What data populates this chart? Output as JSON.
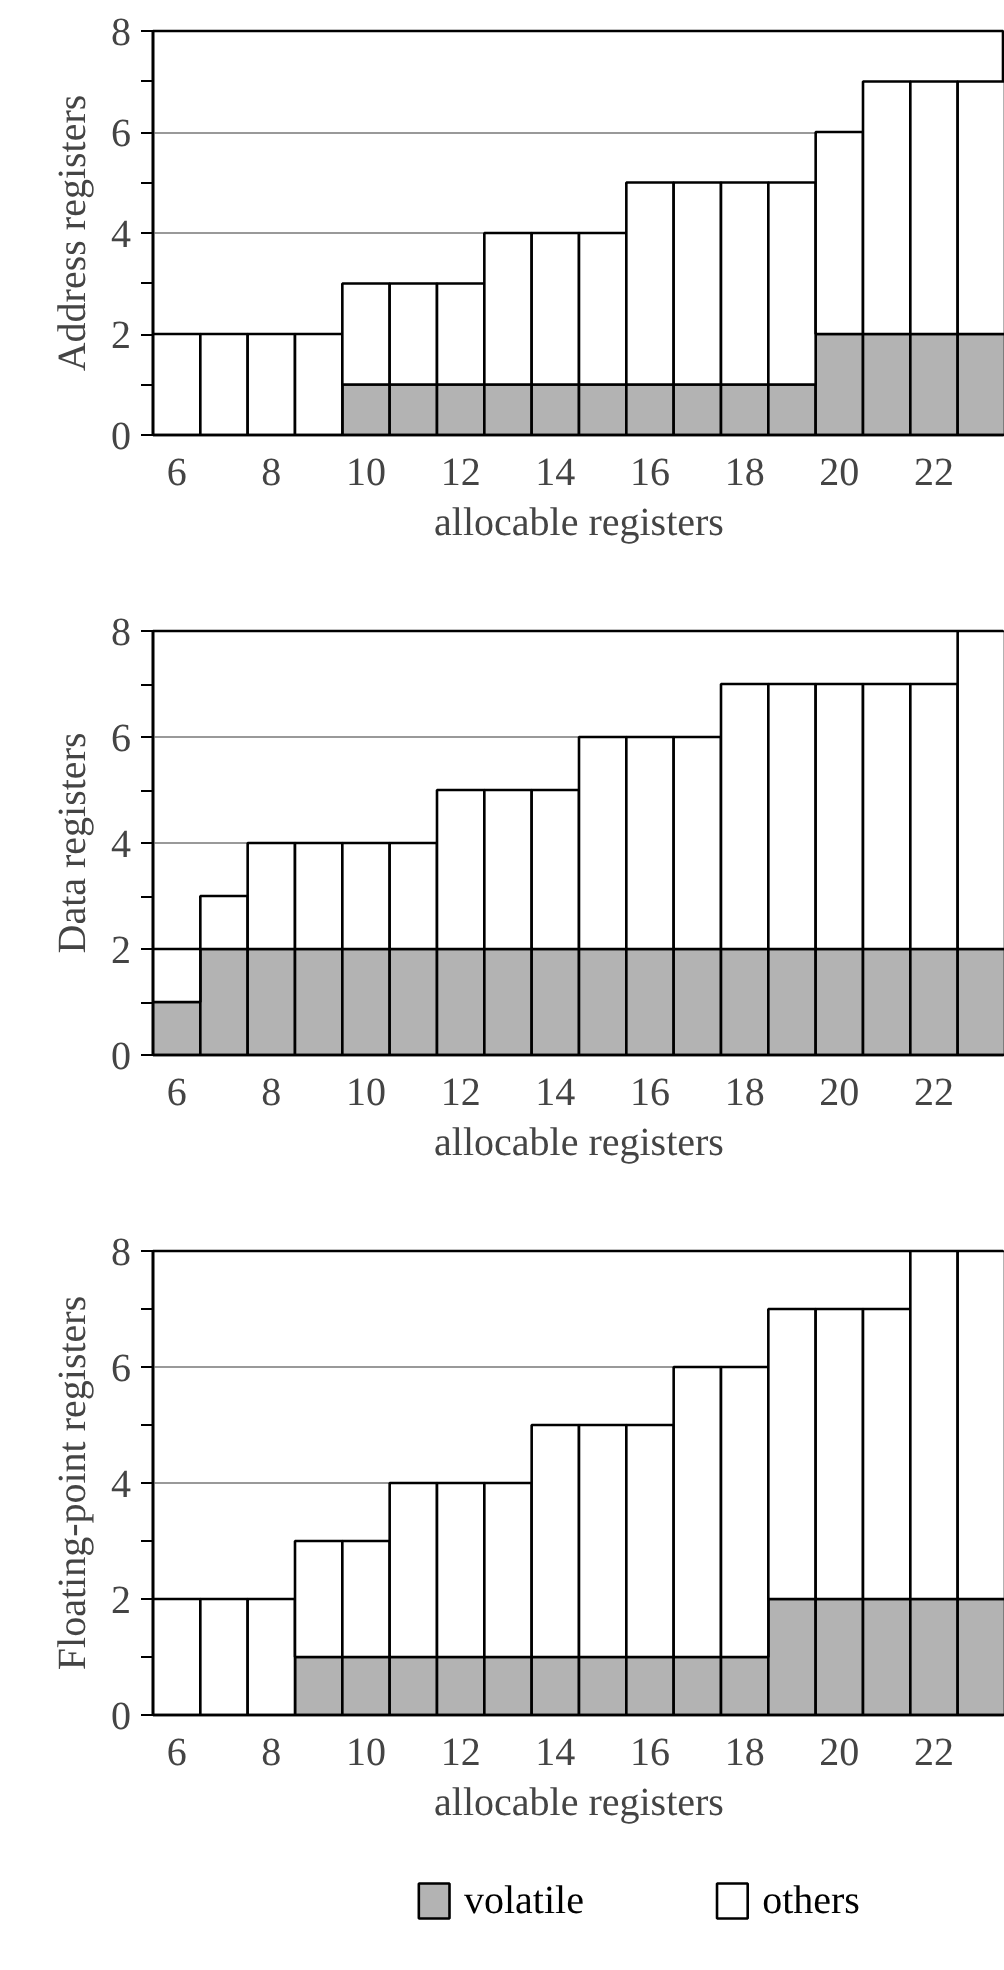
{
  "chart_data": [
    {
      "type": "bar",
      "stacked": true,
      "ylabel": "Address registers",
      "xlabel": "allocable registers",
      "x": [
        6,
        7,
        8,
        9,
        10,
        11,
        12,
        13,
        14,
        15,
        16,
        17,
        18,
        19,
        20,
        21,
        22,
        23
      ],
      "series": [
        {
          "color": "#b3b3b3",
          "values": [
            0,
            0,
            0,
            0,
            1,
            1,
            1,
            1,
            1,
            1,
            1,
            1,
            1,
            1,
            2,
            2,
            2,
            2
          ]
        },
        {
          "color": "#ffffff",
          "values": [
            2,
            2,
            2,
            2,
            2,
            2,
            2,
            3,
            3,
            3,
            4,
            4,
            4,
            4,
            4,
            5,
            5,
            5
          ]
        }
      ],
      "xlim": [
        5.5,
        23.5
      ],
      "xticks": [
        6,
        8,
        10,
        12,
        14,
        16,
        18,
        20,
        22
      ],
      "ylim": [
        0,
        8
      ],
      "yticks": [
        0,
        {
          "value": 1,
          "label": null
        },
        2,
        {
          "value": 3,
          "label": null
        },
        4,
        {
          "value": 5,
          "label": null
        },
        6,
        {
          "value": 7,
          "label": null
        },
        8
      ],
      "grid": "y",
      "legend": false
    },
    {
      "type": "bar",
      "stacked": true,
      "ylabel": "Data registers",
      "xlabel": "allocable registers",
      "x": [
        6,
        7,
        8,
        9,
        10,
        11,
        12,
        13,
        14,
        15,
        16,
        17,
        18,
        19,
        20,
        21,
        22,
        23
      ],
      "series": [
        {
          "color": "#b3b3b3",
          "values": [
            1,
            2,
            2,
            2,
            2,
            2,
            2,
            2,
            2,
            2,
            2,
            2,
            2,
            2,
            2,
            2,
            2,
            2
          ]
        },
        {
          "color": "#ffffff",
          "values": [
            1,
            1,
            2,
            2,
            2,
            2,
            3,
            3,
            3,
            4,
            4,
            4,
            5,
            5,
            5,
            5,
            5,
            6
          ]
        }
      ],
      "xlim": [
        5.5,
        23.5
      ],
      "xticks": [
        6,
        8,
        10,
        12,
        14,
        16,
        18,
        20,
        22
      ],
      "ylim": [
        0,
        8
      ],
      "yticks": [
        0,
        {
          "value": 1,
          "label": null
        },
        2,
        {
          "value": 3,
          "label": null
        },
        4,
        {
          "value": 5,
          "label": null
        },
        6,
        {
          "value": 7,
          "label": null
        },
        8
      ],
      "grid": "y",
      "legend": false
    },
    {
      "type": "bar",
      "stacked": true,
      "ylabel": "Floating-point registers",
      "xlabel": "allocable registers",
      "x": [
        6,
        7,
        8,
        9,
        10,
        11,
        12,
        13,
        14,
        15,
        16,
        17,
        18,
        19,
        20,
        21,
        22,
        23
      ],
      "series": [
        {
          "name": "volatile",
          "color": "#b3b3b3",
          "values": [
            0,
            0,
            0,
            1,
            1,
            1,
            1,
            1,
            1,
            1,
            1,
            1,
            1,
            2,
            2,
            2,
            2,
            2
          ]
        },
        {
          "name": "others",
          "color": "#ffffff",
          "values": [
            2,
            2,
            2,
            2,
            2,
            3,
            3,
            3,
            4,
            4,
            4,
            5,
            5,
            5,
            5,
            5,
            6,
            6
          ]
        }
      ],
      "xlim": [
        5.5,
        23.5
      ],
      "xticks": [
        6,
        8,
        10,
        12,
        14,
        16,
        18,
        20,
        22
      ],
      "ylim": [
        0,
        8
      ],
      "yticks": [
        0,
        {
          "value": 1,
          "label": null
        },
        2,
        {
          "value": 3,
          "label": null
        },
        4,
        {
          "value": 5,
          "label": null
        },
        6,
        {
          "value": 7,
          "label": null
        },
        8
      ],
      "grid": "y",
      "legend": "bottom"
    }
  ]
}
